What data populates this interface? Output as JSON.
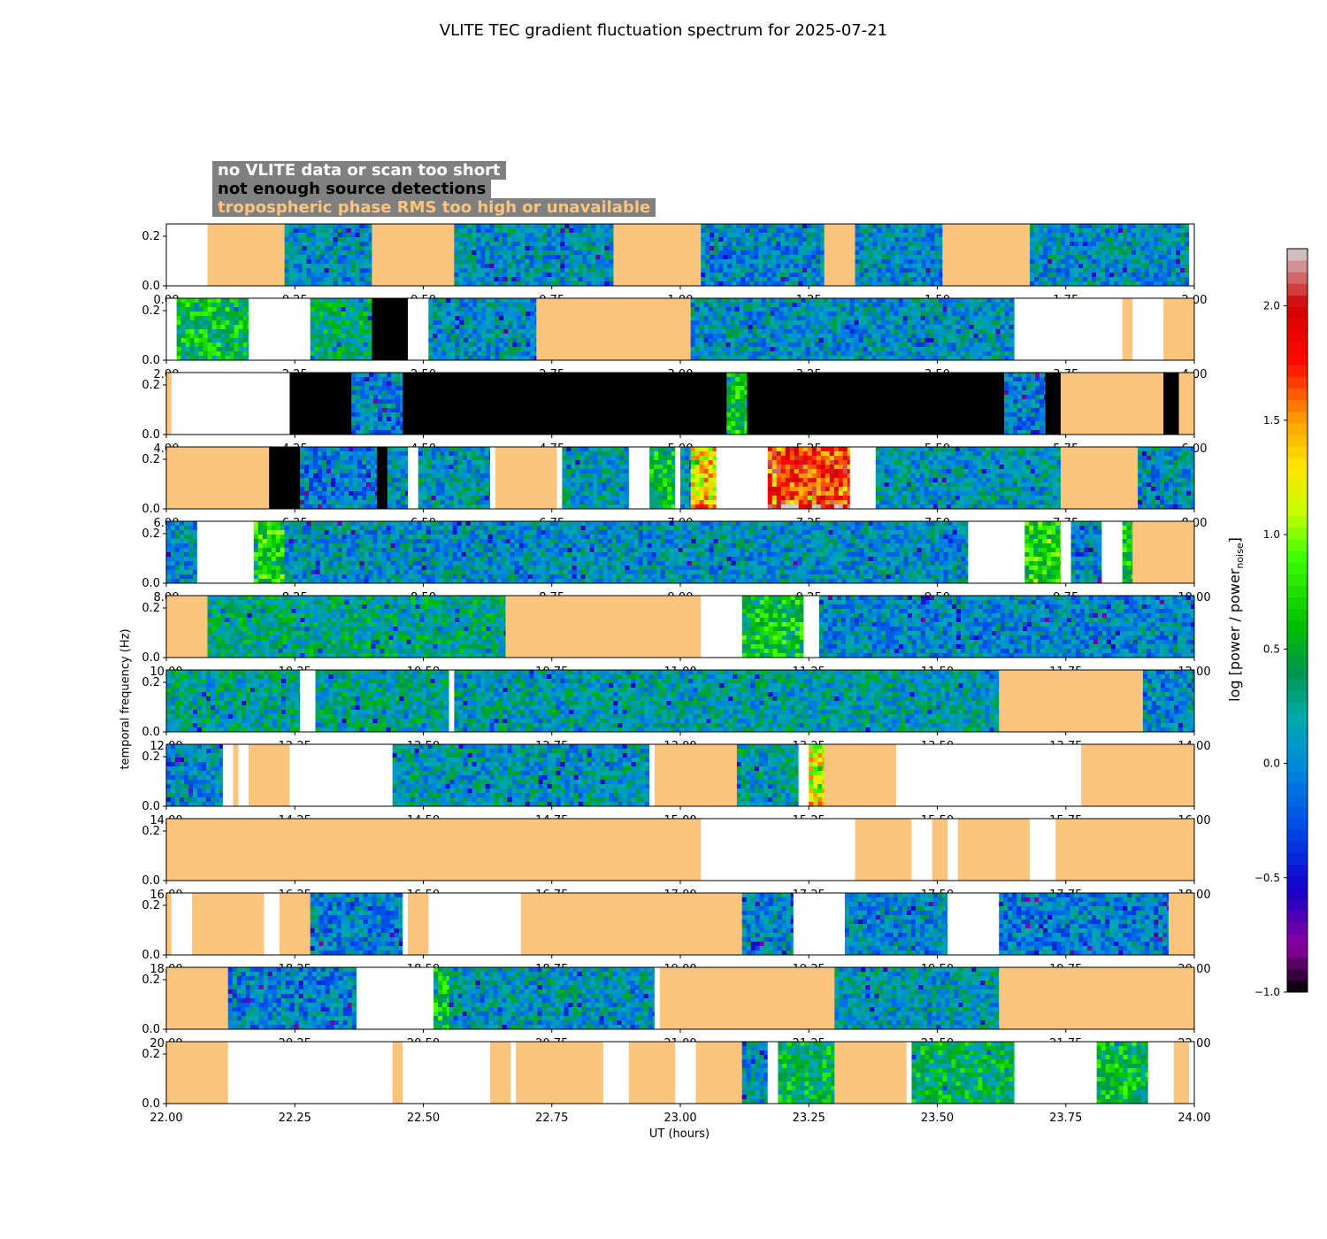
{
  "title": "VLITE TEC gradient fluctuation spectrum for 2025-07-21",
  "legend": {
    "no_data": "no VLITE data or scan too short",
    "no_detections": "not enough source detections",
    "tropo": "tropospheric phase RMS too high or unavailable"
  },
  "colors": {
    "no_data": "#ffffff",
    "no_detections": "#000000",
    "tropo": "#fdc47b",
    "legend_bg": "#808080"
  },
  "chart_data": {
    "type": "heatmap",
    "title": "VLITE TEC gradient fluctuation spectrum for 2025-07-21",
    "xlabel": "UT (hours)",
    "ylabel": "temporal frequency (Hz)",
    "ylim": [
      0,
      0.25
    ],
    "yticks": [
      "0.0",
      "0.2"
    ],
    "colorbar": {
      "label": "log [power / power",
      "label_sub": "noise",
      "label_end": "]",
      "range": [
        -1.0,
        2.25
      ],
      "ticks": [
        "−1.0",
        "−0.5",
        "0.0",
        "0.5",
        "1.0",
        "1.5",
        "2.0"
      ],
      "tick_values": [
        -1.0,
        -0.5,
        0.0,
        0.5,
        1.0,
        1.5,
        2.0
      ]
    },
    "panels": [
      {
        "xlim": [
          0,
          2
        ],
        "xticks": [
          "0.00",
          "0.25",
          "0.50",
          "0.75",
          "1.00",
          "1.25",
          "1.50",
          "1.75",
          "2.00"
        ],
        "segments": [
          [
            0,
            0.08,
            "none"
          ],
          [
            0.08,
            0.23,
            "tropo"
          ],
          [
            0.23,
            0.4,
            "data",
            0.1
          ],
          [
            0.4,
            0.56,
            "tropo"
          ],
          [
            0.56,
            0.87,
            "data",
            0.1
          ],
          [
            0.87,
            1.04,
            "tropo"
          ],
          [
            1.04,
            1.28,
            "data",
            0.05
          ],
          [
            1.28,
            1.34,
            "tropo"
          ],
          [
            1.34,
            1.51,
            "data",
            0.05
          ],
          [
            1.51,
            1.68,
            "tropo"
          ],
          [
            1.68,
            1.99,
            "data",
            0.1
          ],
          [
            1.99,
            2.0,
            "none"
          ]
        ]
      },
      {
        "xlim": [
          2,
          4
        ],
        "xticks": [
          "2.00",
          "2.25",
          "2.50",
          "2.75",
          "3.00",
          "3.25",
          "3.50",
          "3.75",
          "4.00"
        ],
        "segments": [
          [
            2.0,
            2.02,
            "none"
          ],
          [
            2.02,
            2.16,
            "data",
            0.55
          ],
          [
            2.16,
            2.28,
            "none"
          ],
          [
            2.28,
            2.4,
            "data",
            0.35
          ],
          [
            2.4,
            2.47,
            "black"
          ],
          [
            2.47,
            2.51,
            "none"
          ],
          [
            2.51,
            2.72,
            "data",
            0.1
          ],
          [
            2.72,
            3.02,
            "tropo"
          ],
          [
            3.02,
            3.65,
            "data",
            0.1
          ],
          [
            3.65,
            3.86,
            "none"
          ],
          [
            3.86,
            3.88,
            "tropo"
          ],
          [
            3.88,
            3.94,
            "none"
          ],
          [
            3.94,
            4.0,
            "tropo"
          ]
        ]
      },
      {
        "xlim": [
          4,
          6
        ],
        "xticks": [
          "4.00",
          "4.25",
          "4.50",
          "4.75",
          "5.00",
          "5.25",
          "5.50",
          "5.75",
          "6.00"
        ],
        "segments": [
          [
            4.0,
            4.01,
            "tropo"
          ],
          [
            4.01,
            4.24,
            "none"
          ],
          [
            4.24,
            4.36,
            "black"
          ],
          [
            4.36,
            4.46,
            "data",
            0.0
          ],
          [
            4.46,
            5.09,
            "black"
          ],
          [
            5.09,
            5.13,
            "data",
            0.6
          ],
          [
            5.13,
            5.63,
            "black"
          ],
          [
            5.63,
            5.71,
            "data",
            0.0
          ],
          [
            5.71,
            5.74,
            "black"
          ],
          [
            5.74,
            5.94,
            "tropo"
          ],
          [
            5.94,
            5.97,
            "black"
          ],
          [
            5.97,
            6.0,
            "tropo"
          ]
        ]
      },
      {
        "xlim": [
          6,
          8
        ],
        "xticks": [
          "6.00",
          "6.25",
          "6.50",
          "6.75",
          "7.00",
          "7.25",
          "7.50",
          "7.75",
          "8.00"
        ],
        "segments": [
          [
            6.0,
            6.2,
            "tropo"
          ],
          [
            6.2,
            6.26,
            "black"
          ],
          [
            6.26,
            6.41,
            "data",
            0.0
          ],
          [
            6.41,
            6.43,
            "black"
          ],
          [
            6.43,
            6.47,
            "data",
            0.1
          ],
          [
            6.47,
            6.49,
            "none"
          ],
          [
            6.49,
            6.63,
            "data",
            0.15
          ],
          [
            6.63,
            6.64,
            "none"
          ],
          [
            6.64,
            6.76,
            "tropo"
          ],
          [
            6.76,
            6.77,
            "none"
          ],
          [
            6.77,
            6.9,
            "data",
            0.15
          ],
          [
            6.9,
            6.94,
            "none"
          ],
          [
            6.94,
            6.99,
            "data",
            0.55
          ],
          [
            6.99,
            7.0,
            "none"
          ],
          [
            7.0,
            7.02,
            "data",
            0.1
          ],
          [
            7.02,
            7.07,
            "data",
            1.3
          ],
          [
            7.07,
            7.17,
            "none"
          ],
          [
            7.17,
            7.33,
            "data",
            1.75
          ],
          [
            7.33,
            7.38,
            "none"
          ],
          [
            7.38,
            7.74,
            "data",
            0.15
          ],
          [
            7.74,
            7.89,
            "tropo"
          ],
          [
            7.89,
            8.0,
            "data",
            0.1
          ]
        ]
      },
      {
        "xlim": [
          8,
          10
        ],
        "xticks": [
          "8.00",
          "8.25",
          "8.50",
          "8.75",
          "9.00",
          "9.25",
          "9.50",
          "9.75",
          "10.00"
        ],
        "segments": [
          [
            8.0,
            8.06,
            "data",
            0.05
          ],
          [
            8.06,
            8.17,
            "none"
          ],
          [
            8.17,
            8.23,
            "data",
            0.7
          ],
          [
            8.23,
            9.56,
            "data",
            0.1
          ],
          [
            9.56,
            9.67,
            "none"
          ],
          [
            9.67,
            9.74,
            "data",
            0.75
          ],
          [
            9.74,
            9.76,
            "none"
          ],
          [
            9.76,
            9.82,
            "data",
            0.05
          ],
          [
            9.82,
            9.86,
            "none"
          ],
          [
            9.86,
            9.88,
            "data",
            0.6
          ],
          [
            9.88,
            10.0,
            "tropo"
          ]
        ]
      },
      {
        "xlim": [
          10,
          12
        ],
        "xticks": [
          "10.00",
          "10.25",
          "10.50",
          "10.75",
          "11.00",
          "11.25",
          "11.50",
          "11.75",
          "12.00"
        ],
        "segments": [
          [
            10.0,
            10.08,
            "tropo"
          ],
          [
            10.08,
            10.66,
            "data",
            0.3
          ],
          [
            10.66,
            11.04,
            "tropo"
          ],
          [
            11.04,
            11.12,
            "none"
          ],
          [
            11.12,
            11.24,
            "data",
            0.6
          ],
          [
            11.24,
            11.27,
            "none"
          ],
          [
            11.27,
            12.0,
            "data",
            0.05
          ]
        ]
      },
      {
        "xlim": [
          12,
          14
        ],
        "xticks": [
          "12.00",
          "12.25",
          "12.50",
          "12.75",
          "13.00",
          "13.25",
          "13.50",
          "13.75",
          "14.00"
        ],
        "segments": [
          [
            12.0,
            12.26,
            "data",
            0.25
          ],
          [
            12.26,
            12.29,
            "none"
          ],
          [
            12.29,
            12.55,
            "data",
            0.25
          ],
          [
            12.55,
            12.56,
            "none"
          ],
          [
            12.56,
            13.62,
            "data",
            0.2
          ],
          [
            13.62,
            13.9,
            "tropo"
          ],
          [
            13.9,
            14.0,
            "data",
            0.05
          ]
        ]
      },
      {
        "xlim": [
          14,
          16
        ],
        "xticks": [
          "14.00",
          "14.25",
          "14.50",
          "14.75",
          "15.00",
          "15.25",
          "15.50",
          "15.75",
          "16.00"
        ],
        "segments": [
          [
            14.0,
            14.11,
            "data",
            0.05
          ],
          [
            14.11,
            14.13,
            "none"
          ],
          [
            14.13,
            14.14,
            "tropo"
          ],
          [
            14.14,
            14.16,
            "none"
          ],
          [
            14.16,
            14.24,
            "tropo"
          ],
          [
            14.24,
            14.44,
            "none"
          ],
          [
            14.44,
            14.94,
            "data",
            0.15
          ],
          [
            14.94,
            14.95,
            "none"
          ],
          [
            14.95,
            15.11,
            "tropo"
          ],
          [
            15.11,
            15.23,
            "data",
            0.2
          ],
          [
            15.23,
            15.25,
            "none"
          ],
          [
            15.25,
            15.28,
            "data",
            1.2
          ],
          [
            15.28,
            15.42,
            "tropo"
          ],
          [
            15.42,
            15.78,
            "none"
          ],
          [
            15.78,
            16.0,
            "tropo"
          ]
        ]
      },
      {
        "xlim": [
          16,
          18
        ],
        "xticks": [
          "16.00",
          "16.25",
          "16.50",
          "16.75",
          "17.00",
          "17.25",
          "17.50",
          "17.75",
          "18.00"
        ],
        "segments": [
          [
            16.0,
            17.04,
            "tropo"
          ],
          [
            17.04,
            17.34,
            "none"
          ],
          [
            17.34,
            17.45,
            "tropo"
          ],
          [
            17.45,
            17.49,
            "none"
          ],
          [
            17.49,
            17.52,
            "tropo"
          ],
          [
            17.52,
            17.54,
            "none"
          ],
          [
            17.54,
            17.68,
            "tropo"
          ],
          [
            17.68,
            17.73,
            "none"
          ],
          [
            17.73,
            18.0,
            "tropo"
          ]
        ]
      },
      {
        "xlim": [
          18,
          20
        ],
        "xticks": [
          "18.00",
          "18.25",
          "18.50",
          "18.75",
          "19.00",
          "19.25",
          "19.50",
          "19.75",
          "20.00"
        ],
        "segments": [
          [
            18.0,
            18.01,
            "tropo"
          ],
          [
            18.01,
            18.05,
            "none"
          ],
          [
            18.05,
            18.19,
            "tropo"
          ],
          [
            18.19,
            18.22,
            "none"
          ],
          [
            18.22,
            18.28,
            "tropo"
          ],
          [
            18.28,
            18.46,
            "data",
            0.0
          ],
          [
            18.46,
            18.47,
            "none"
          ],
          [
            18.47,
            18.51,
            "tropo"
          ],
          [
            18.51,
            18.69,
            "none"
          ],
          [
            18.69,
            19.12,
            "tropo"
          ],
          [
            19.12,
            19.22,
            "data",
            0.05
          ],
          [
            19.22,
            19.32,
            "none"
          ],
          [
            19.32,
            19.52,
            "data",
            0.05
          ],
          [
            19.52,
            19.62,
            "none"
          ],
          [
            19.62,
            19.95,
            "data",
            0.0
          ],
          [
            19.95,
            20.0,
            "tropo"
          ]
        ]
      },
      {
        "xlim": [
          20,
          22
        ],
        "xticks": [
          "20.00",
          "20.25",
          "20.50",
          "20.75",
          "21.00",
          "21.25",
          "21.50",
          "21.75",
          "22.00"
        ],
        "segments": [
          [
            20.0,
            20.12,
            "tropo"
          ],
          [
            20.12,
            20.37,
            "data",
            0.0
          ],
          [
            20.37,
            20.52,
            "none"
          ],
          [
            20.52,
            20.55,
            "data",
            0.6
          ],
          [
            20.55,
            20.95,
            "data",
            0.15
          ],
          [
            20.95,
            20.96,
            "none"
          ],
          [
            20.96,
            21.3,
            "tropo"
          ],
          [
            21.3,
            21.62,
            "data",
            0.15
          ],
          [
            21.62,
            22.0,
            "tropo"
          ]
        ]
      },
      {
        "xlim": [
          22,
          24
        ],
        "xticks": [
          "22.00",
          "22.25",
          "22.50",
          "22.75",
          "23.00",
          "23.25",
          "23.50",
          "23.75",
          "24.00"
        ],
        "segments": [
          [
            22.0,
            22.12,
            "tropo"
          ],
          [
            22.12,
            22.44,
            "none"
          ],
          [
            22.44,
            22.46,
            "tropo"
          ],
          [
            22.46,
            22.63,
            "none"
          ],
          [
            22.63,
            22.67,
            "tropo"
          ],
          [
            22.67,
            22.68,
            "none"
          ],
          [
            22.68,
            22.85,
            "tropo"
          ],
          [
            22.85,
            22.9,
            "none"
          ],
          [
            22.9,
            22.99,
            "tropo"
          ],
          [
            22.99,
            23.03,
            "none"
          ],
          [
            23.03,
            23.12,
            "tropo"
          ],
          [
            23.12,
            23.17,
            "data",
            0.1
          ],
          [
            23.17,
            23.19,
            "none"
          ],
          [
            23.19,
            23.3,
            "data",
            0.45
          ],
          [
            23.3,
            23.44,
            "tropo"
          ],
          [
            23.44,
            23.45,
            "none"
          ],
          [
            23.45,
            23.65,
            "data",
            0.45
          ],
          [
            23.65,
            23.81,
            "none"
          ],
          [
            23.81,
            23.91,
            "data",
            0.55
          ],
          [
            23.91,
            23.96,
            "none"
          ],
          [
            23.96,
            23.99,
            "tropo"
          ],
          [
            23.99,
            24.0,
            "none"
          ]
        ]
      }
    ]
  }
}
